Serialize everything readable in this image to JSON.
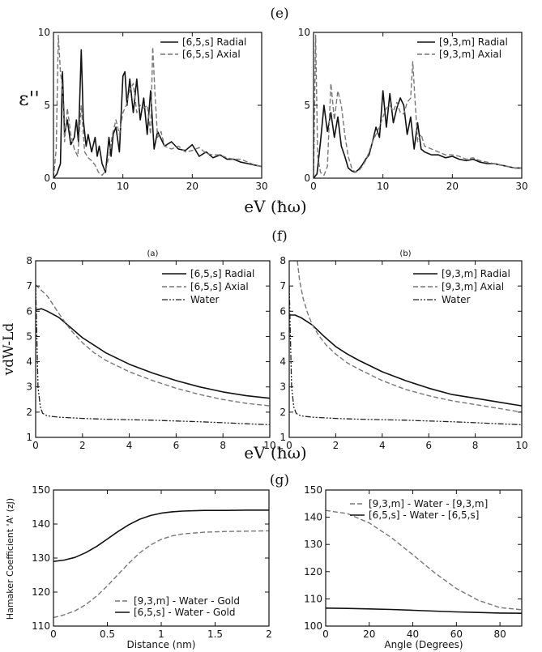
{
  "panel_labels": {
    "e": "(e)",
    "f": "(f)",
    "g": "(g)"
  },
  "shared_xlabels": {
    "row_e": "eV (ħω)",
    "row_f": "eV (ħω)"
  },
  "colors": {
    "solid": "#111111",
    "dashed": "#777777",
    "dashdot": "#222222"
  },
  "chart_data": [
    {
      "id": "e-left",
      "type": "line",
      "row": "e",
      "title": "",
      "subtitle": "",
      "xlabel": "",
      "ylabel": "ε''",
      "xlim": [
        0,
        30
      ],
      "ylim": [
        0,
        10
      ],
      "xticks": [
        0,
        10,
        20,
        30
      ],
      "yticks": [
        0,
        5,
        10
      ],
      "grid": false,
      "legend_position": "top-right",
      "series": [
        {
          "name": "[6,5,s] Radial",
          "style": "solid",
          "x": [
            0,
            0.5,
            1,
            1.3,
            1.6,
            2,
            2.5,
            3,
            3.3,
            3.6,
            4,
            4.3,
            4.7,
            5,
            5.5,
            6,
            6.3,
            6.6,
            7,
            7.5,
            8,
            8.3,
            8.6,
            9,
            9.5,
            10,
            10.3,
            10.6,
            11,
            11.5,
            12,
            12.5,
            13,
            13.5,
            14,
            14.5,
            15,
            16,
            17,
            18,
            19,
            20,
            21,
            22,
            23,
            24,
            25,
            26,
            27,
            28,
            29,
            30
          ],
          "y": [
            0,
            0.3,
            1,
            7.3,
            3,
            4,
            2.3,
            2.8,
            4,
            2.5,
            8.8,
            4,
            2.2,
            3,
            1.8,
            2.8,
            1.5,
            2.2,
            1,
            0.4,
            2.8,
            1.5,
            3,
            3.5,
            1.8,
            7,
            7.3,
            5,
            6.8,
            4.5,
            6.8,
            4,
            5.5,
            3,
            6,
            2,
            3.2,
            2.2,
            2.5,
            2,
            1.9,
            2.3,
            1.5,
            1.8,
            1.4,
            1.6,
            1.3,
            1.3,
            1.1,
            1,
            0.9,
            0.8
          ]
        },
        {
          "name": "[6,5,s] Axial",
          "style": "dashed",
          "x": [
            0,
            0.4,
            0.7,
            1,
            1.3,
            1.6,
            2,
            2.5,
            3,
            3.5,
            4,
            4.5,
            5,
            5.5,
            6,
            6.5,
            7,
            7.5,
            8,
            8.5,
            9,
            9.5,
            10,
            10.5,
            11,
            11.5,
            12,
            12.5,
            13,
            13.5,
            14,
            14.3,
            14.6,
            15,
            15.5,
            16,
            17,
            18,
            19,
            20,
            21,
            22,
            23,
            24,
            25,
            26,
            27,
            28,
            29,
            30
          ],
          "y": [
            0,
            2,
            9.8,
            7.3,
            6.2,
            2.5,
            4.8,
            3,
            2,
            1.5,
            5,
            1.8,
            1.4,
            1.2,
            0.9,
            0.4,
            0.2,
            0.5,
            1.5,
            3,
            4,
            3,
            4.5,
            5,
            6,
            6.5,
            4.5,
            5,
            4.8,
            5,
            3,
            9,
            6,
            2.8,
            3.2,
            2.2,
            2,
            2.2,
            1.8,
            1.9,
            2.1,
            1.7,
            1.6,
            1.6,
            1.4,
            1.3,
            1.3,
            1.1,
            0.9,
            0.8
          ]
        }
      ]
    },
    {
      "id": "e-right",
      "type": "line",
      "row": "e",
      "title": "",
      "subtitle": "",
      "xlabel": "",
      "ylabel": "",
      "xlim": [
        0,
        30
      ],
      "ylim": [
        0,
        10
      ],
      "xticks": [
        0,
        10,
        20,
        30
      ],
      "yticks": [
        0,
        5,
        10
      ],
      "grid": false,
      "legend_position": "top-right",
      "series": [
        {
          "name": "[9,3,m] Radial",
          "style": "solid",
          "x": [
            0,
            0.5,
            1,
            1.5,
            2,
            2.5,
            3,
            3.5,
            4,
            4.5,
            5,
            5.5,
            6,
            6.5,
            7,
            7.5,
            8,
            8.5,
            9,
            9.5,
            10,
            10.5,
            11,
            11.5,
            12,
            12.5,
            13,
            13.5,
            14,
            14.5,
            15,
            15.5,
            16,
            17,
            18,
            19,
            20,
            21,
            22,
            23,
            24,
            25,
            26,
            27,
            28,
            29,
            30
          ],
          "y": [
            0,
            0.3,
            2.5,
            5,
            3.2,
            4.5,
            2.8,
            4.2,
            2.2,
            1.5,
            0.7,
            0.5,
            0.4,
            0.6,
            0.9,
            1.3,
            1.6,
            2.5,
            3.5,
            2.8,
            6,
            3.5,
            5.8,
            3.8,
            4.8,
            5.5,
            5,
            3,
            4.2,
            2,
            3.8,
            2,
            1.8,
            1.6,
            1.6,
            1.4,
            1.5,
            1.3,
            1.2,
            1.3,
            1.1,
            1,
            1,
            0.9,
            0.8,
            0.7,
            0.7
          ]
        },
        {
          "name": "[9,3,m] Axial",
          "style": "dashed",
          "x": [
            0,
            0.3,
            0.6,
            1,
            1.5,
            2,
            2.5,
            3,
            3.5,
            4,
            4.5,
            5,
            5.5,
            6,
            6.5,
            7,
            7.5,
            8,
            8.5,
            9,
            9.5,
            10,
            10.5,
            11,
            11.5,
            12,
            12.5,
            13,
            13.5,
            14,
            14.3,
            14.6,
            15,
            15.5,
            16,
            17,
            18,
            19,
            20,
            21,
            22,
            23,
            24,
            25,
            26,
            27,
            28,
            29,
            30
          ],
          "y": [
            0,
            9.8,
            1.5,
            0.4,
            0.2,
            0.8,
            6.5,
            4,
            6,
            5,
            3,
            1.5,
            0.7,
            0.4,
            0.5,
            0.8,
            1.2,
            1.8,
            2.5,
            3,
            3.5,
            4.2,
            4.8,
            5,
            4.6,
            5.2,
            4.5,
            4.4,
            5.2,
            5.5,
            8,
            5.5,
            2.5,
            3,
            2.2,
            2,
            1.8,
            1.6,
            1.6,
            1.5,
            1.3,
            1.4,
            1.2,
            1.1,
            1,
            0.9,
            0.8,
            0.7,
            0.7
          ]
        }
      ]
    },
    {
      "id": "f-left",
      "type": "line",
      "row": "f",
      "title": "(a)",
      "subtitle": "",
      "xlabel": "",
      "ylabel": "vdW-Ld",
      "xlim": [
        0,
        10
      ],
      "ylim": [
        1,
        8
      ],
      "xticks": [
        0,
        2,
        4,
        6,
        8,
        10
      ],
      "yticks": [
        1,
        2,
        3,
        4,
        5,
        6,
        7,
        8
      ],
      "grid": false,
      "legend_position": "top-right",
      "series": [
        {
          "name": "[6,5,s] Radial",
          "style": "solid",
          "x": [
            0,
            0.25,
            0.5,
            1,
            1.5,
            2,
            2.5,
            3,
            4,
            5,
            6,
            7,
            8,
            9,
            10
          ],
          "y": [
            6.05,
            6.1,
            6.0,
            5.75,
            5.35,
            4.95,
            4.65,
            4.35,
            3.9,
            3.55,
            3.25,
            3.0,
            2.8,
            2.65,
            2.55
          ]
        },
        {
          "name": "[6,5,s] Axial",
          "style": "dashed",
          "x": [
            0,
            0.5,
            1,
            1.5,
            2,
            2.5,
            3,
            4,
            5,
            6,
            7,
            8,
            9,
            10
          ],
          "y": [
            7.05,
            6.6,
            5.9,
            5.25,
            4.75,
            4.35,
            4.05,
            3.6,
            3.25,
            2.95,
            2.7,
            2.5,
            2.35,
            2.25
          ]
        },
        {
          "name": "Water",
          "style": "dashdot",
          "x": [
            0,
            0.1,
            0.2,
            0.3,
            0.5,
            1,
            2,
            3,
            4,
            5,
            6,
            7,
            8,
            9,
            10
          ],
          "y": [
            7.0,
            3.0,
            2.2,
            1.95,
            1.85,
            1.8,
            1.75,
            1.72,
            1.7,
            1.68,
            1.65,
            1.62,
            1.58,
            1.54,
            1.5
          ]
        }
      ]
    },
    {
      "id": "f-right",
      "type": "line",
      "row": "f",
      "title": "(b)",
      "subtitle": "",
      "xlabel": "",
      "ylabel": "",
      "xlim": [
        0,
        10
      ],
      "ylim": [
        1,
        8
      ],
      "xticks": [
        0,
        2,
        4,
        6,
        8,
        10
      ],
      "yticks": [
        1,
        2,
        3,
        4,
        5,
        6,
        7,
        8
      ],
      "grid": false,
      "legend_position": "top-right",
      "series": [
        {
          "name": "[9,3,m] Radial",
          "style": "solid",
          "x": [
            0,
            0.25,
            0.5,
            1,
            1.5,
            2,
            2.5,
            3,
            4,
            5,
            6,
            7,
            8,
            9,
            10
          ],
          "y": [
            5.85,
            5.85,
            5.75,
            5.45,
            5.0,
            4.6,
            4.3,
            4.05,
            3.6,
            3.25,
            2.95,
            2.7,
            2.55,
            2.4,
            2.25
          ]
        },
        {
          "name": "[9,3,m] Axial",
          "style": "dashed",
          "x": [
            0.35,
            0.45,
            0.6,
            0.8,
            1,
            1.3,
            1.6,
            2,
            2.5,
            3,
            4,
            5,
            6,
            7,
            8,
            9,
            10
          ],
          "y": [
            8.0,
            7.2,
            6.5,
            5.9,
            5.45,
            5.0,
            4.65,
            4.3,
            3.95,
            3.7,
            3.25,
            2.9,
            2.65,
            2.45,
            2.3,
            2.15,
            2.0
          ]
        },
        {
          "name": "Water",
          "style": "dashdot",
          "x": [
            0,
            0.1,
            0.2,
            0.3,
            0.5,
            1,
            2,
            3,
            4,
            5,
            6,
            7,
            8,
            9,
            10
          ],
          "y": [
            7.0,
            3.0,
            2.2,
            1.95,
            1.85,
            1.8,
            1.75,
            1.72,
            1.7,
            1.68,
            1.65,
            1.62,
            1.58,
            1.54,
            1.5
          ]
        }
      ]
    },
    {
      "id": "g-left",
      "type": "line",
      "row": "g",
      "title": "",
      "subtitle": "",
      "xlabel": "Distance (nm)",
      "ylabel": "Hamaker Coefficient 'A' (zJ)",
      "xlim": [
        0,
        2
      ],
      "ylim": [
        110,
        150
      ],
      "xticks": [
        0,
        0.5,
        1,
        1.5,
        2
      ],
      "yticks": [
        110,
        120,
        130,
        140,
        150
      ],
      "grid": false,
      "legend_position": "bottom-left",
      "series": [
        {
          "name": "[9,3,m] - Water - Gold",
          "style": "dashed",
          "x": [
            0,
            0.1,
            0.2,
            0.3,
            0.4,
            0.5,
            0.6,
            0.7,
            0.8,
            0.9,
            1.0,
            1.1,
            1.2,
            1.4,
            1.6,
            1.8,
            2.0
          ],
          "y": [
            112.5,
            113.3,
            114.5,
            116.3,
            118.8,
            121.8,
            125.2,
            128.5,
            131.5,
            133.8,
            135.5,
            136.5,
            137.1,
            137.6,
            137.8,
            137.9,
            138.0
          ]
        },
        {
          "name": "[6,5,s] - Water - Gold",
          "style": "solid",
          "x": [
            0,
            0.1,
            0.2,
            0.3,
            0.4,
            0.5,
            0.6,
            0.7,
            0.8,
            0.9,
            1.0,
            1.1,
            1.2,
            1.4,
            1.6,
            1.8,
            2.0
          ],
          "y": [
            129.0,
            129.4,
            130.2,
            131.6,
            133.4,
            135.6,
            137.8,
            139.8,
            141.4,
            142.5,
            143.2,
            143.6,
            143.8,
            144.0,
            144.0,
            144.1,
            144.1
          ]
        }
      ]
    },
    {
      "id": "g-right",
      "type": "line",
      "row": "g",
      "title": "",
      "subtitle": "",
      "xlabel": "Angle (Degrees)",
      "ylabel": "",
      "xlim": [
        0,
        90
      ],
      "ylim": [
        100,
        150
      ],
      "xticks": [
        0,
        20,
        40,
        60,
        80
      ],
      "yticks": [
        100,
        110,
        120,
        130,
        140,
        150
      ],
      "grid": false,
      "legend_position": "top-right",
      "series": [
        {
          "name": "[9,3,m] - Water - [9,3,m]",
          "style": "dashed",
          "x": [
            0,
            10,
            20,
            30,
            40,
            50,
            60,
            70,
            80,
            90
          ],
          "y": [
            142.5,
            141.3,
            137.9,
            132.6,
            126.2,
            119.6,
            113.8,
            109.5,
            106.8,
            106.0
          ]
        },
        {
          "name": "[6,5,s] - Water - [6,5,s]",
          "style": "solid",
          "x": [
            0,
            10,
            20,
            30,
            40,
            50,
            60,
            70,
            80,
            90
          ],
          "y": [
            106.6,
            106.5,
            106.3,
            106.1,
            105.8,
            105.5,
            105.2,
            105.0,
            104.8,
            104.7
          ]
        }
      ]
    }
  ]
}
